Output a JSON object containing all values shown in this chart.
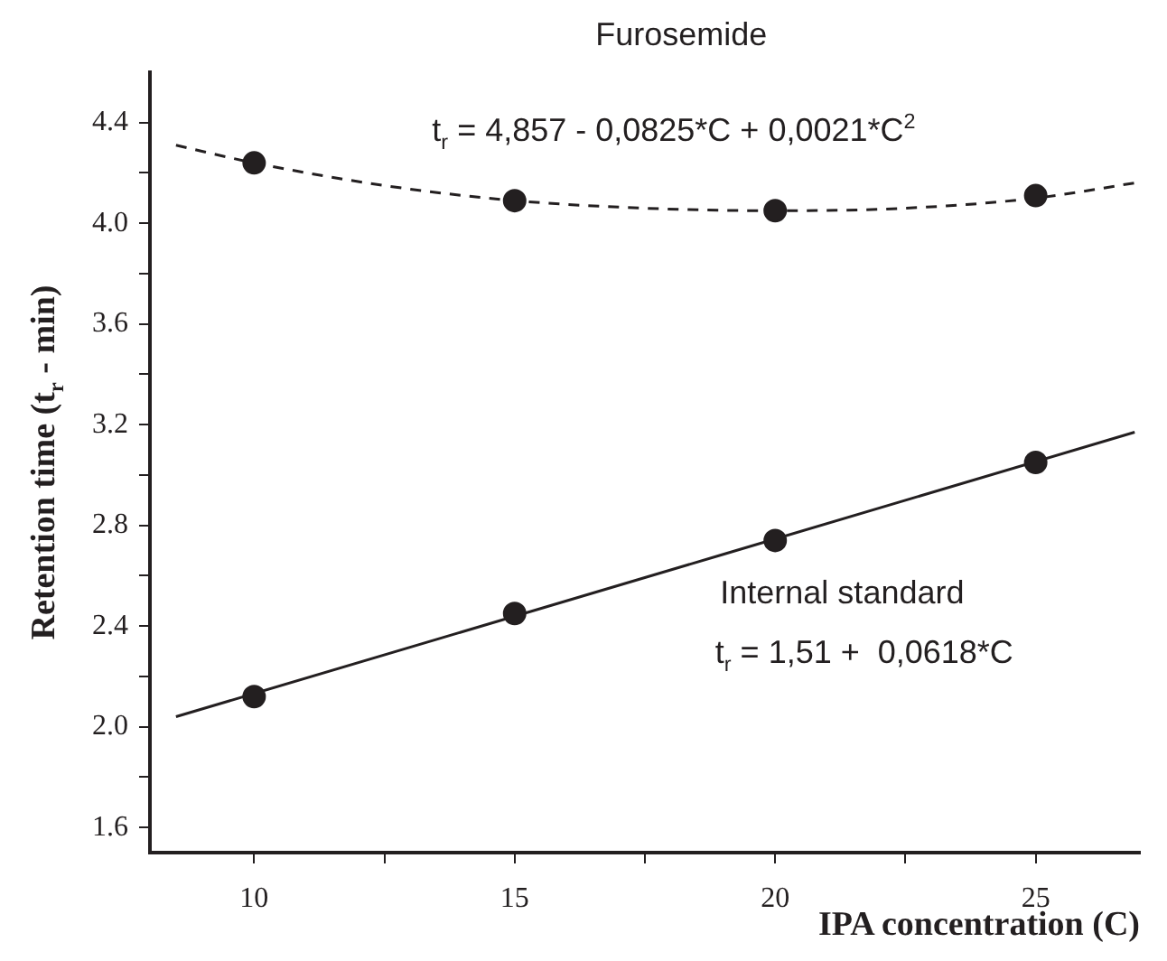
{
  "chart_data": {
    "type": "scatter",
    "xlabel": "IPA concentration (C)",
    "ylabel": "Retention time (t$_{r}$ - min)",
    "xlim": [
      8,
      27
    ],
    "xticks": [
      10,
      {
        "value": 12.5,
        "label": null
      },
      15,
      {
        "value": 17.5,
        "label": null
      },
      20,
      {
        "value": 22.5,
        "label": null
      },
      25
    ],
    "ylim": [
      1.5,
      4.6
    ],
    "yticks": [
      1.6,
      {
        "value": 1.8,
        "label": null
      },
      "2.0",
      {
        "value": 2.2,
        "label": null
      },
      2.4,
      {
        "value": 2.6,
        "label": null
      },
      2.8,
      {
        "value": 3.0,
        "label": null
      },
      3.2,
      {
        "value": 3.4,
        "label": null
      },
      3.6,
      {
        "value": 3.8,
        "label": null
      },
      "4.0",
      {
        "value": 4.2,
        "label": null
      },
      4.4
    ],
    "grid": false,
    "legend": false,
    "annotations": [
      "Furosemide",
      "t$_{r}$ = 4,857 - 0,0825*C + 0,0021*C$^{2}$",
      "Internal standard",
      "t$_{r}$ = 1,51 +  0,0618*C"
    ],
    "series": [
      {
        "marker": "circle",
        "color": "#231f20",
        "x": [
          10,
          15,
          20,
          25
        ],
        "values": [
          4.24,
          4.09,
          4.05,
          4.11
        ]
      },
      {
        "marker": "circle",
        "color": "#231f20",
        "x": [
          10,
          15,
          20,
          25
        ],
        "values": [
          2.12,
          2.45,
          2.74,
          3.05
        ]
      },
      {
        "type": "line",
        "line_style": "dashed",
        "marker": "none",
        "color": "#231f20",
        "x": [
          8.5,
          10,
          12.5,
          15,
          17.5,
          20,
          22.5,
          25,
          26.9
        ],
        "values": [
          4.31,
          4.24,
          4.15,
          4.09,
          4.06,
          4.05,
          4.06,
          4.1,
          4.16
        ]
      },
      {
        "type": "line",
        "line_style": "solid",
        "marker": "none",
        "color": "#231f20",
        "x": [
          8.5,
          26.9
        ],
        "values": [
          2.04,
          3.17
        ]
      }
    ]
  }
}
